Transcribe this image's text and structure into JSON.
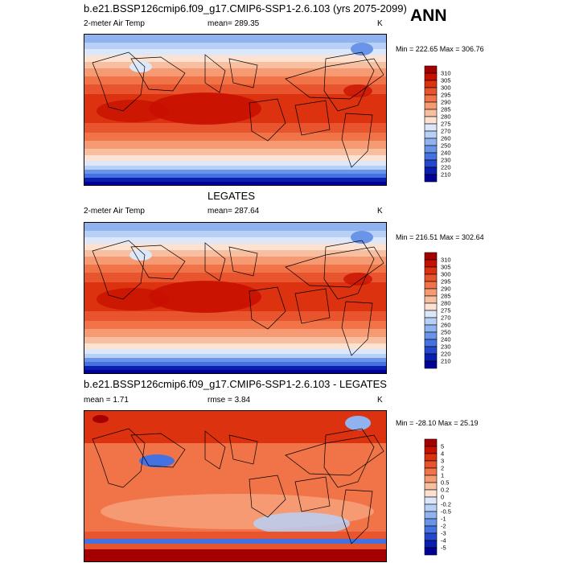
{
  "season": "ANN",
  "panels": [
    {
      "title": "b.e21.BSSP126cmip6.f09_g17.CMIP6-SSP1-2.6.103 (yrs 2075-2099)",
      "left_label": "2-meter Air Temp",
      "center_label": "mean= 289.35",
      "right_label": "K",
      "minmax": "Min = 222.65 Max = 306.76",
      "palette": "abs"
    },
    {
      "title": "LEGATES",
      "left_label": "2-meter Air Temp",
      "center_label": "mean= 287.64",
      "right_label": "K",
      "minmax": "Min = 216.51 Max = 302.64",
      "palette": "abs"
    },
    {
      "title": "b.e21.BSSP126cmip6.f09_g17.CMIP6-SSP1-2.6.103 - LEGATES",
      "left_label": "mean =   1.71",
      "center_label": "rmse =   3.84",
      "right_label": "K",
      "minmax": "Min = -28.10 Max =  25.19",
      "palette": "diff"
    }
  ],
  "colorbars": {
    "abs": {
      "labels": [
        "310",
        "305",
        "300",
        "295",
        "290",
        "285",
        "280",
        "275",
        "270",
        "260",
        "250",
        "240",
        "230",
        "220",
        "210"
      ],
      "colors": [
        "#a50000",
        "#c81000",
        "#dc3210",
        "#e8542e",
        "#f07448",
        "#f59a72",
        "#f8bea0",
        "#fde2d2",
        "#dce8fa",
        "#b8d0f5",
        "#90b2ee",
        "#6a94e8",
        "#4472e0",
        "#2448cc",
        "#0a1eb0",
        "#000096"
      ]
    },
    "diff": {
      "labels": [
        "5",
        "4",
        "3",
        "2",
        "1",
        "0.5",
        "0.2",
        "0",
        "-0.2",
        "-0.5",
        "-1",
        "-2",
        "-3",
        "-4",
        "-5"
      ],
      "colors": [
        "#a50000",
        "#c81000",
        "#dc3210",
        "#e8542e",
        "#f07448",
        "#f59a72",
        "#f8bea0",
        "#fde2d2",
        "#dce8fa",
        "#b8d0f5",
        "#90b2ee",
        "#6a94e8",
        "#4472e0",
        "#2448cc",
        "#0a1eb0",
        "#000096"
      ]
    }
  },
  "chart_data": [
    {
      "type": "heatmap",
      "title": "b.e21.BSSP126cmip6.f09_g17.CMIP6-SSP1-2.6.103 (yrs 2075-2099)",
      "variable": "2-meter Air Temp",
      "units": "K",
      "mean": 289.35,
      "min": 222.65,
      "max": 306.76,
      "levels": [
        210,
        220,
        230,
        240,
        250,
        260,
        270,
        275,
        280,
        285,
        290,
        295,
        300,
        305,
        310
      ]
    },
    {
      "type": "heatmap",
      "title": "LEGATES",
      "variable": "2-meter Air Temp",
      "units": "K",
      "mean": 287.64,
      "min": 216.51,
      "max": 302.64,
      "levels": [
        210,
        220,
        230,
        240,
        250,
        260,
        270,
        275,
        280,
        285,
        290,
        295,
        300,
        305,
        310
      ]
    },
    {
      "type": "heatmap",
      "title": "b.e21.BSSP126cmip6.f09_g17.CMIP6-SSP1-2.6.103 - LEGATES",
      "units": "K",
      "mean": 1.71,
      "rmse": 3.84,
      "min": -28.1,
      "max": 25.19,
      "levels": [
        -5,
        -4,
        -3,
        -2,
        -1,
        -0.5,
        -0.2,
        0,
        0.2,
        0.5,
        1,
        2,
        3,
        4,
        5
      ]
    }
  ]
}
